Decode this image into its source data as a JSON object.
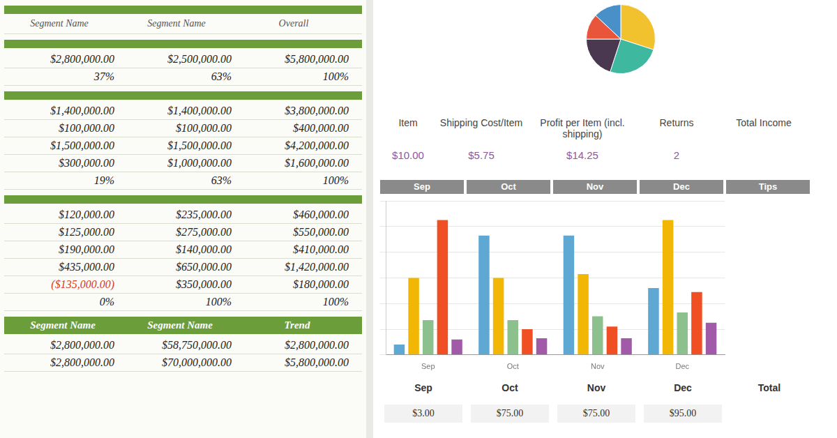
{
  "table": {
    "header": [
      "Segment Name",
      "Segment Name",
      "Overall"
    ],
    "sections": [
      {
        "rows": [
          [
            "$2,800,000.00",
            "$2,500,000.00",
            "$5,800,000.00"
          ],
          [
            "37%",
            "63%",
            "100%"
          ]
        ]
      },
      {
        "rows": [
          [
            "$1,400,000.00",
            "$1,400,000.00",
            "$3,800,000.00"
          ],
          [
            "$100,000.00",
            "$100,000.00",
            "$400,000.00"
          ],
          [
            "$1,500,000.00",
            "$1,500,000.00",
            "$4,200,000.00"
          ],
          [
            "$300,000.00",
            "$1,000,000.00",
            "$1,600,000.00"
          ],
          [
            "19%",
            "63%",
            "100%"
          ]
        ]
      },
      {
        "rows": [
          [
            "$120,000.00",
            "$235,000.00",
            "$460,000.00"
          ],
          [
            "$125,000.00",
            "$275,000.00",
            "$550,000.00"
          ],
          [
            "$190,000.00",
            "$140,000.00",
            "$410,000.00"
          ],
          [
            "$435,000.00",
            "$650,000.00",
            "$1,420,000.00"
          ],
          [
            "($135,000.00)",
            "$350,000.00",
            "$180,000.00"
          ],
          [
            "0%",
            "100%",
            "100%"
          ]
        ]
      },
      {
        "header": [
          "Segment Name",
          "Segment Name",
          "Trend"
        ],
        "rows": [
          [
            "$2,800,000.00",
            "$58,750,000.00",
            "$2,800,000.00"
          ],
          [
            "$2,800,000.00",
            "$70,000,000.00",
            "$5,800,000.00"
          ]
        ]
      }
    ]
  },
  "summary": {
    "headers": [
      "Item",
      "Shipping Cost/Item",
      "Profit per Item (incl. shipping)",
      "Returns",
      "Total Income"
    ],
    "values": [
      "$10.00",
      "$5.75",
      "$14.25",
      "2",
      null
    ]
  },
  "month_header": [
    "Sep",
    "Oct",
    "Nov",
    "Dec",
    "Tips"
  ],
  "chart_data": [
    {
      "type": "bar",
      "categories": [
        "Sep",
        "Oct",
        "Nov",
        "Dec"
      ],
      "series": [
        {
          "color": "#5fa8d3",
          "values": [
            8,
            93,
            93,
            52
          ]
        },
        {
          "color": "#f2b705",
          "values": [
            60,
            60,
            63,
            105
          ]
        },
        {
          "color": "#8cc08c",
          "values": [
            27,
            27,
            30,
            33
          ]
        },
        {
          "color": "#f04e23",
          "values": [
            105,
            20,
            22,
            49
          ]
        },
        {
          "color": "#a05aa8",
          "values": [
            12,
            13,
            13,
            25
          ]
        }
      ],
      "ylim": [
        0,
        120
      ],
      "yticks": [
        0,
        20,
        40,
        60,
        80,
        100,
        120
      ],
      "grid": true,
      "tick_labels": "x"
    },
    {
      "type": "pie",
      "values": [
        30,
        25,
        20,
        12,
        13
      ],
      "colors": [
        "#f2c12e",
        "#3fb8a0",
        "#4a3850",
        "#e8553a",
        "#4a90c8"
      ]
    }
  ],
  "totals_row": {
    "headers": [
      "Sep",
      "Oct",
      "Nov",
      "Dec",
      "Total"
    ],
    "values": [
      "$3.00",
      "$75.00",
      "$75.00",
      "$95.00",
      null
    ]
  }
}
